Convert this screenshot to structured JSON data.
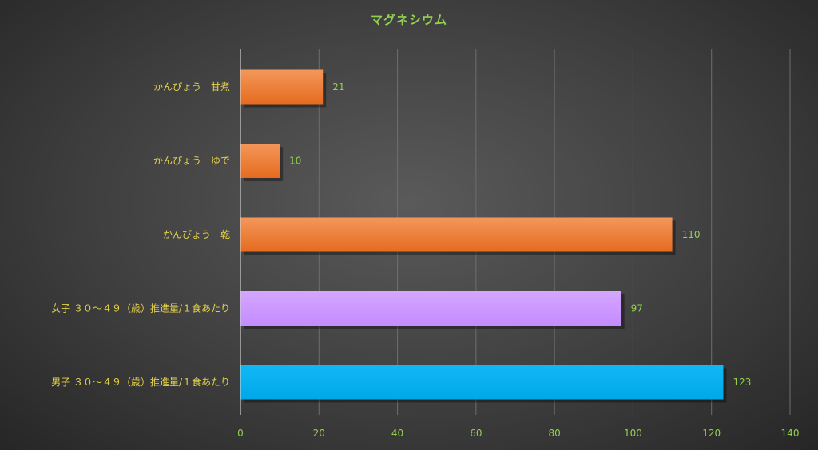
{
  "chart_data": {
    "type": "bar",
    "orientation": "horizontal",
    "title": "マグネシウム",
    "categories": [
      "かんぴょう　甘煮",
      "かんぴょう　ゆで",
      "かんぴょう　乾",
      "女子 ３０～４９（歳）推進量/１食あたり",
      "男子 ３０～４９（歳）推進量/１食あたり"
    ],
    "values": [
      21,
      10,
      110,
      97,
      123
    ],
    "bar_colors": [
      "#ed7d31",
      "#ed7d31",
      "#ed7d31",
      "#cc99ff",
      "#00b0f0"
    ],
    "xlim": [
      0,
      140
    ],
    "xticks": [
      0,
      20,
      40,
      60,
      80,
      100,
      120,
      140
    ],
    "xlabel": "",
    "ylabel": "",
    "grid": "vertical",
    "legend": "none",
    "data_labels": true
  },
  "colors": {
    "title": "#92d050",
    "category_label": "#e6d34a",
    "value_label": "#92d050",
    "tick_label": "#92d050",
    "gridline": "#6e6e6e",
    "axis_line": "#cfcfcf"
  }
}
